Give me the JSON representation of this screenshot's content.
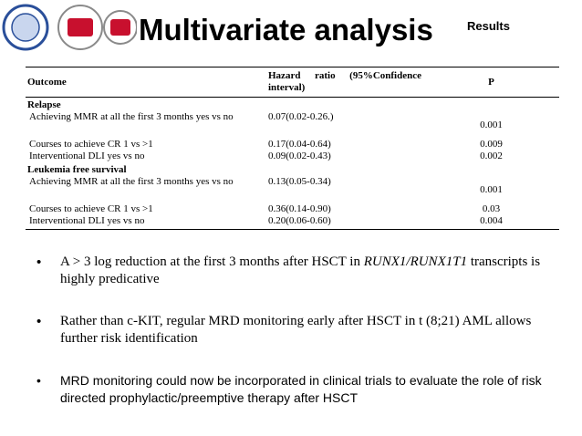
{
  "header": {
    "title": "Multivariate analysis",
    "section": "Results"
  },
  "table": {
    "columns": [
      "Outcome",
      "Hazard ratio (95%Confidence interval)",
      "P"
    ],
    "groups": [
      {
        "label": "Relapse",
        "rows": [
          [
            "Achieving MMR at all the first 3 months yes vs no",
            "0.07(0.02-0.26.)",
            "0.001"
          ],
          [
            "Courses to achieve CR  1 vs >1",
            "0.17(0.04-0.64)",
            "0.009"
          ],
          [
            "Interventional DLI  yes vs no",
            "0.09(0.02-0.43)",
            "0.002"
          ]
        ]
      },
      {
        "label": "Leukemia free survival",
        "rows": [
          [
            "Achieving MMR at all the first 3 months yes vs no",
            "0.13(0.05-0.34)",
            "0.001"
          ],
          [
            "Courses to achieve CR  1 vs >1",
            "0.36(0.14-0.90)",
            "0.03"
          ],
          [
            "Interventional DLI  yes vs no",
            "0.20(0.06-0.60)",
            "0.004"
          ]
        ]
      }
    ]
  },
  "bullets": [
    [
      "A > 3 log reduction at the first 3 months after HSCT in ",
      "RUNX1/RUNX1T1",
      " transcripts is highly predicative"
    ],
    [
      "Rather than c-KIT, regular MRD monitoring early after HSCT in t (8;21) AML allows further risk identification"
    ],
    [
      "MRD monitoring could now be incorporated in clinical trials to evaluate the role of risk directed prophylactic/preemptive therapy after HSCT"
    ]
  ]
}
